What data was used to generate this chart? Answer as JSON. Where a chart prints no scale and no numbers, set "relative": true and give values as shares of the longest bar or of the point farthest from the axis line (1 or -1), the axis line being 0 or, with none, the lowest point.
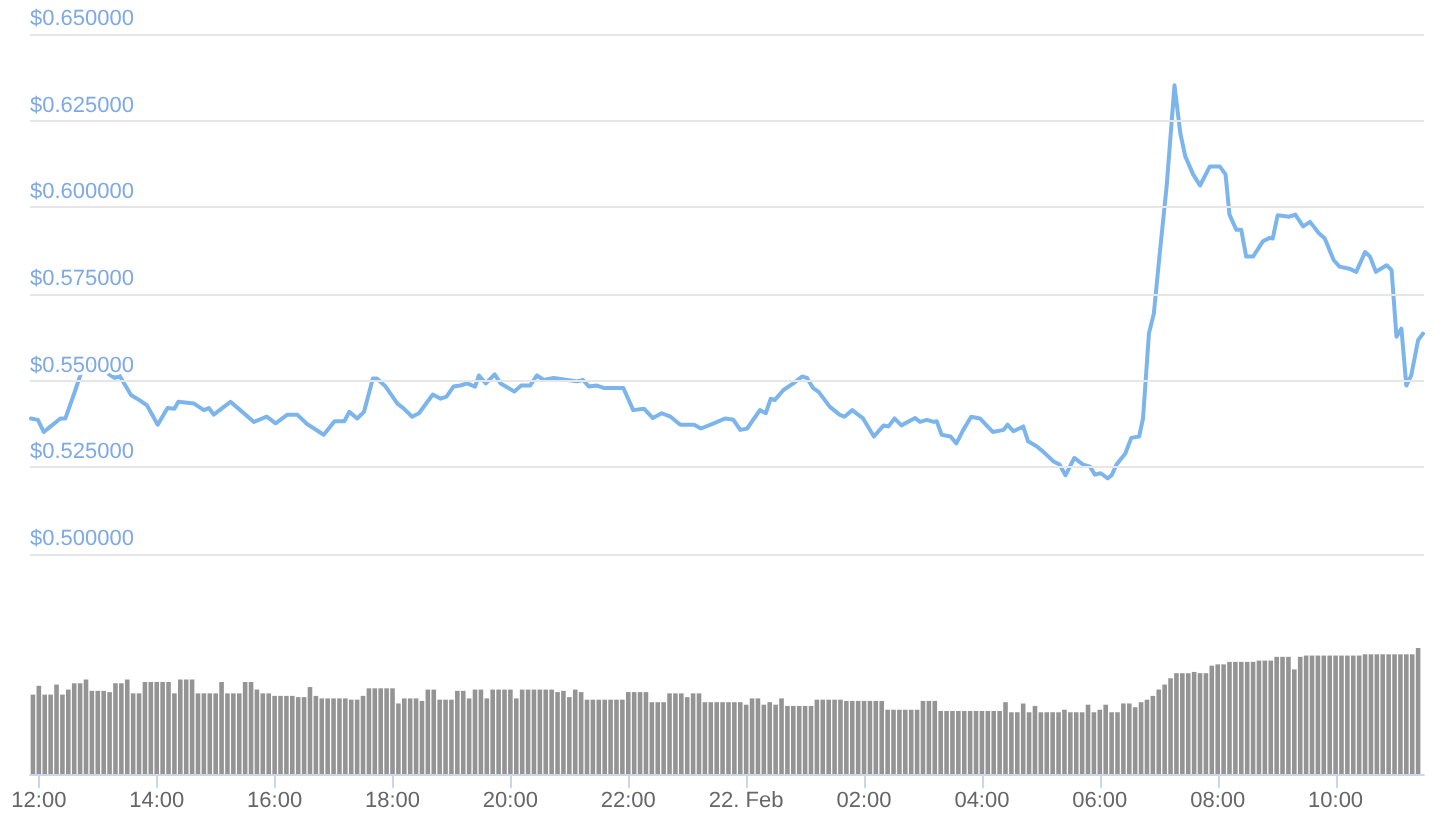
{
  "chart_data": [
    {
      "type": "line",
      "color": "#7cb5ec",
      "grid": "y",
      "tick_labels": "y",
      "xlim": [
        "--02-21T11:51",
        "--02-22T11:30"
      ],
      "ylim": [
        0.5,
        0.65
      ],
      "yticks": [
        {
          "value": 0.5,
          "label": "$0.500000"
        },
        {
          "value": 0.525,
          "label": "$0.525000"
        },
        {
          "value": 0.55,
          "label": "$0.550000"
        },
        {
          "value": 0.575,
          "label": "$0.575000"
        },
        {
          "value": 0.6,
          "label": "$0.600000"
        },
        {
          "value": 0.625,
          "label": "$0.625000"
        },
        {
          "value": 0.65,
          "label": "$0.650000"
        }
      ],
      "x": [
        "--02-21T11:52",
        "--02-21T11:59",
        "--02-21T12:05",
        "--02-21T12:12",
        "--02-21T12:22",
        "--02-21T12:27",
        "--02-21T12:36",
        "--02-21T12:44",
        "--02-21T12:53",
        "--02-21T12:59",
        "--02-21T13:10",
        "--02-21T13:17",
        "--02-21T13:22",
        "--02-21T13:34",
        "--02-21T13:40",
        "--02-21T13:50",
        "--02-21T14:01",
        "--02-21T14:11",
        "--02-21T14:18",
        "--02-21T14:22",
        "--02-21T14:38",
        "--02-21T14:48",
        "--02-21T14:53",
        "--02-21T14:58",
        "--02-21T15:15",
        "--02-21T15:25",
        "--02-21T15:39",
        "--02-21T15:52",
        "--02-21T16:01",
        "--02-21T16:13",
        "--02-21T16:23",
        "--02-21T16:33",
        "--02-21T16:50",
        "--02-21T17:01",
        "--02-21T17:11",
        "--02-21T17:16",
        "--02-21T17:24",
        "--02-21T17:31",
        "--02-21T17:40",
        "--02-21T17:44",
        "--02-21T17:53",
        "--02-21T18:05",
        "--02-21T18:11",
        "--02-21T18:20",
        "--02-21T18:27",
        "--02-21T18:41",
        "--02-21T18:49",
        "--02-21T18:55",
        "--02-21T19:02",
        "--02-21T19:09",
        "--02-21T19:16",
        "--02-21T19:24",
        "--02-21T19:28",
        "--02-21T19:35",
        "--02-21T19:44",
        "--02-21T19:50",
        "--02-21T20:04",
        "--02-21T20:11",
        "--02-21T20:20",
        "--02-21T20:27",
        "--02-21T20:34",
        "--02-21T20:44",
        "--02-21T20:58",
        "--02-21T21:08",
        "--02-21T21:14",
        "--02-21T21:20",
        "--02-21T21:28",
        "--02-21T21:35",
        "--02-21T21:55",
        "--02-21T22:05",
        "--02-21T22:16",
        "--02-21T22:25",
        "--02-21T22:34",
        "--02-21T22:43",
        "--02-21T22:53",
        "--02-21T23:07",
        "--02-21T23:14",
        "--02-21T23:27",
        "--02-21T23:39",
        "--02-21T23:47",
        "--02-21T23:54",
        "--02-22T00:01",
        "--02-22T00:14",
        "--02-22T00:20",
        "--02-22T00:25",
        "--02-22T00:29",
        "--02-22T00:38",
        "--02-22T00:48",
        "--02-22T00:57",
        "--02-22T01:02",
        "--02-22T01:08",
        "--02-22T01:14",
        "--02-22T01:25",
        "--02-22T01:35",
        "--02-22T01:40",
        "--02-22T01:48",
        "--02-22T01:59",
        "--02-22T02:10",
        "--02-22T02:20",
        "--02-22T02:25",
        "--02-22T02:31",
        "--02-22T02:38",
        "--02-22T02:52",
        "--02-22T02:57",
        "--02-22T03:04",
        "--02-22T03:11",
        "--02-22T03:14",
        "--02-22T03:19",
        "--02-22T03:28",
        "--02-22T03:34",
        "--02-22T03:41",
        "--02-22T03:49",
        "--02-22T03:58",
        "--02-22T04:11",
        "--02-22T04:22",
        "--02-22T04:26",
        "--02-22T04:32",
        "--02-22T04:42",
        "--02-22T04:47",
        "--02-22T04:56",
        "--02-22T05:02",
        "--02-22T05:13",
        "--02-22T05:19",
        "--02-22T05:25",
        "--02-22T05:34",
        "--02-22T05:43",
        "--02-22T05:50",
        "--02-22T05:55",
        "--02-22T06:01",
        "--02-22T06:08",
        "--02-22T06:12",
        "--02-22T06:17",
        "--02-22T06:26",
        "--02-22T06:32",
        "--02-22T06:40",
        "--02-22T06:44",
        "--02-22T06:50",
        "--02-22T06:55",
        "--02-22T07:01",
        "--02-22T07:08",
        "--02-22T07:16",
        "--02-22T07:22",
        "--02-22T07:27",
        "--02-22T07:35",
        "--02-22T07:42",
        "--02-22T07:52",
        "--02-22T08:02",
        "--02-22T08:08",
        "--02-22T08:12",
        "--02-22T08:19",
        "--02-22T08:24",
        "--02-22T08:29",
        "--02-22T08:36",
        "--02-22T08:46",
        "--02-22T08:53",
        "--02-22T08:56",
        "--02-22T09:01",
        "--02-22T09:13",
        "--02-22T09:19",
        "--02-22T09:27",
        "--02-22T09:34",
        "--02-22T09:43",
        "--02-22T09:49",
        "--02-22T09:58",
        "--02-22T10:04",
        "--02-22T10:14",
        "--02-22T10:21",
        "--02-22T10:30",
        "--02-22T10:35",
        "--02-22T10:41",
        "--02-22T10:52",
        "--02-22T10:57",
        "--02-22T11:02",
        "--02-22T11:07",
        "--02-22T11:12",
        "--02-22T11:17",
        "--02-22T11:24",
        "--02-22T11:29"
      ],
      "values": [
        0.5391,
        0.5387,
        0.5352,
        0.5368,
        0.5391,
        0.5391,
        0.5463,
        0.5531,
        0.5554,
        0.5535,
        0.5521,
        0.5508,
        0.5515,
        0.5458,
        0.5448,
        0.5429,
        0.5373,
        0.5421,
        0.5419,
        0.5439,
        0.5434,
        0.5415,
        0.5421,
        0.5402,
        0.5439,
        0.5415,
        0.5381,
        0.5396,
        0.5377,
        0.5402,
        0.5402,
        0.5375,
        0.5344,
        0.5383,
        0.5383,
        0.541,
        0.5391,
        0.541,
        0.5506,
        0.5506,
        0.5483,
        0.5434,
        0.5421,
        0.5396,
        0.5406,
        0.546,
        0.5448,
        0.5454,
        0.5483,
        0.5486,
        0.5492,
        0.5483,
        0.5515,
        0.5492,
        0.5518,
        0.5492,
        0.5469,
        0.5486,
        0.5486,
        0.5515,
        0.5502,
        0.5508,
        0.5502,
        0.5498,
        0.5502,
        0.5483,
        0.5486,
        0.5479,
        0.5479,
        0.5415,
        0.5419,
        0.5392,
        0.5406,
        0.5396,
        0.5373,
        0.5373,
        0.5362,
        0.5377,
        0.5391,
        0.5387,
        0.5358,
        0.5362,
        0.5415,
        0.5406,
        0.5448,
        0.5444,
        0.5473,
        0.5492,
        0.5512,
        0.5508,
        0.5479,
        0.5467,
        0.5425,
        0.5402,
        0.5396,
        0.5415,
        0.5391,
        0.5339,
        0.5371,
        0.5368,
        0.5391,
        0.5371,
        0.5392,
        0.5381,
        0.5387,
        0.5381,
        0.5383,
        0.5344,
        0.5339,
        0.5319,
        0.5358,
        0.5396,
        0.5391,
        0.5352,
        0.5358,
        0.5373,
        0.5354,
        0.5368,
        0.5325,
        0.531,
        0.5296,
        0.5267,
        0.5258,
        0.5227,
        0.5277,
        0.5258,
        0.5252,
        0.5229,
        0.5233,
        0.5218,
        0.5227,
        0.5258,
        0.529,
        0.5335,
        0.5339,
        0.5391,
        0.5636,
        0.5694,
        0.5867,
        0.606,
        0.6352,
        0.6213,
        0.6147,
        0.6095,
        0.6063,
        0.6118,
        0.6118,
        0.6095,
        0.5979,
        0.5935,
        0.5935,
        0.5858,
        0.5858,
        0.5902,
        0.5912,
        0.591,
        0.5977,
        0.5973,
        0.5979,
        0.5945,
        0.5958,
        0.5925,
        0.591,
        0.5848,
        0.5829,
        0.5823,
        0.5814,
        0.5871,
        0.5858,
        0.5814,
        0.5833,
        0.5819,
        0.5627,
        0.565,
        0.5486,
        0.5515,
        0.5617,
        0.5636
      ]
    },
    {
      "type": "bar",
      "color": "#949494",
      "relative": true,
      "xlim": [
        "--02-21T11:51",
        "--02-22T11:30"
      ],
      "xticks": [
        {
          "value": "--02-21T12:00",
          "label": "12:00"
        },
        {
          "value": "--02-21T14:00",
          "label": "14:00"
        },
        {
          "value": "--02-21T16:00",
          "label": "16:00"
        },
        {
          "value": "--02-21T18:00",
          "label": "18:00"
        },
        {
          "value": "--02-21T20:00",
          "label": "20:00"
        },
        {
          "value": "--02-21T22:00",
          "label": "22:00"
        },
        {
          "value": "--02-22T00:00",
          "label": "22. Feb"
        },
        {
          "value": "--02-22T02:00",
          "label": "02:00"
        },
        {
          "value": "--02-22T04:00",
          "label": "04:00"
        },
        {
          "value": "--02-22T06:00",
          "label": "06:00"
        },
        {
          "value": "--02-22T08:00",
          "label": "08:00"
        },
        {
          "value": "--02-22T10:00",
          "label": "10:00"
        }
      ],
      "x": [
        "--02-21T11:54",
        "--02-21T12:00",
        "--02-21T12:06",
        "--02-21T12:12",
        "--02-21T12:18",
        "--02-21T12:24",
        "--02-21T12:30",
        "--02-21T12:36",
        "--02-21T12:42",
        "--02-21T12:48",
        "--02-21T12:54",
        "--02-21T13:00",
        "--02-21T13:06",
        "--02-21T13:12",
        "--02-21T13:18",
        "--02-21T13:24",
        "--02-21T13:30",
        "--02-21T13:36",
        "--02-21T13:42",
        "--02-21T13:48",
        "--02-21T13:54",
        "--02-21T14:00",
        "--02-21T14:06",
        "--02-21T14:12",
        "--02-21T14:18",
        "--02-21T14:24",
        "--02-21T14:30",
        "--02-21T14:36",
        "--02-21T14:42",
        "--02-21T14:48",
        "--02-21T14:54",
        "--02-21T15:00",
        "--02-21T15:06",
        "--02-21T15:12",
        "--02-21T15:18",
        "--02-21T15:24",
        "--02-21T15:30",
        "--02-21T15:36",
        "--02-21T15:42",
        "--02-21T15:48",
        "--02-21T15:54",
        "--02-21T16:00",
        "--02-21T16:06",
        "--02-21T16:12",
        "--02-21T16:18",
        "--02-21T16:24",
        "--02-21T16:30",
        "--02-21T16:36",
        "--02-21T16:42",
        "--02-21T16:48",
        "--02-21T16:54",
        "--02-21T17:00",
        "--02-21T17:06",
        "--02-21T17:12",
        "--02-21T17:18",
        "--02-21T17:24",
        "--02-21T17:30",
        "--02-21T17:36",
        "--02-21T17:42",
        "--02-21T17:48",
        "--02-21T17:54",
        "--02-21T18:00",
        "--02-21T18:06",
        "--02-21T18:12",
        "--02-21T18:18",
        "--02-21T18:24",
        "--02-21T18:30",
        "--02-21T18:36",
        "--02-21T18:42",
        "--02-21T18:48",
        "--02-21T18:54",
        "--02-21T19:00",
        "--02-21T19:06",
        "--02-21T19:12",
        "--02-21T19:18",
        "--02-21T19:24",
        "--02-21T19:30",
        "--02-21T19:36",
        "--02-21T19:42",
        "--02-21T19:48",
        "--02-21T19:54",
        "--02-21T20:00",
        "--02-21T20:06",
        "--02-21T20:12",
        "--02-21T20:18",
        "--02-21T20:24",
        "--02-21T20:30",
        "--02-21T20:36",
        "--02-21T20:42",
        "--02-21T20:48",
        "--02-21T20:54",
        "--02-21T21:00",
        "--02-21T21:06",
        "--02-21T21:12",
        "--02-21T21:18",
        "--02-21T21:24",
        "--02-21T21:30",
        "--02-21T21:36",
        "--02-21T21:42",
        "--02-21T21:48",
        "--02-21T21:54",
        "--02-21T22:00",
        "--02-21T22:06",
        "--02-21T22:12",
        "--02-21T22:18",
        "--02-21T22:24",
        "--02-21T22:30",
        "--02-21T22:36",
        "--02-21T22:42",
        "--02-21T22:48",
        "--02-21T22:54",
        "--02-21T23:00",
        "--02-21T23:06",
        "--02-21T23:12",
        "--02-21T23:18",
        "--02-21T23:24",
        "--02-21T23:30",
        "--02-21T23:36",
        "--02-21T23:42",
        "--02-21T23:48",
        "--02-21T23:54",
        "--02-22T00:00",
        "--02-22T00:06",
        "--02-22T00:12",
        "--02-22T00:18",
        "--02-22T00:24",
        "--02-22T00:30",
        "--02-22T00:36",
        "--02-22T00:42",
        "--02-22T00:48",
        "--02-22T00:54",
        "--02-22T01:00",
        "--02-22T01:06",
        "--02-22T01:12",
        "--02-22T01:18",
        "--02-22T01:24",
        "--02-22T01:30",
        "--02-22T01:36",
        "--02-22T01:42",
        "--02-22T01:48",
        "--02-22T01:54",
        "--02-22T02:00",
        "--02-22T02:06",
        "--02-22T02:12",
        "--02-22T02:18",
        "--02-22T02:24",
        "--02-22T02:30",
        "--02-22T02:36",
        "--02-22T02:42",
        "--02-22T02:48",
        "--02-22T02:54",
        "--02-22T03:00",
        "--02-22T03:06",
        "--02-22T03:12",
        "--02-22T03:18",
        "--02-22T03:24",
        "--02-22T03:30",
        "--02-22T03:36",
        "--02-22T03:42",
        "--02-22T03:48",
        "--02-22T03:54",
        "--02-22T04:00",
        "--02-22T04:06",
        "--02-22T04:12",
        "--02-22T04:18",
        "--02-22T04:24",
        "--02-22T04:30",
        "--02-22T04:36",
        "--02-22T04:42",
        "--02-22T04:48",
        "--02-22T04:54",
        "--02-22T05:00",
        "--02-22T05:06",
        "--02-22T05:12",
        "--02-22T05:18",
        "--02-22T05:24",
        "--02-22T05:30",
        "--02-22T05:36",
        "--02-22T05:42",
        "--02-22T05:48",
        "--02-22T05:54",
        "--02-22T06:00",
        "--02-22T06:06",
        "--02-22T06:12",
        "--02-22T06:18",
        "--02-22T06:24",
        "--02-22T06:30",
        "--02-22T06:36",
        "--02-22T06:42",
        "--02-22T06:48",
        "--02-22T06:54",
        "--02-22T07:00",
        "--02-22T07:06",
        "--02-22T07:12",
        "--02-22T07:18",
        "--02-22T07:24",
        "--02-22T07:30",
        "--02-22T07:36",
        "--02-22T07:42",
        "--02-22T07:48",
        "--02-22T07:54",
        "--02-22T08:00",
        "--02-22T08:06",
        "--02-22T08:12",
        "--02-22T08:18",
        "--02-22T08:24",
        "--02-22T08:30",
        "--02-22T08:36",
        "--02-22T08:42",
        "--02-22T08:48",
        "--02-22T08:54",
        "--02-22T09:00",
        "--02-22T09:06",
        "--02-22T09:12",
        "--02-22T09:18",
        "--02-22T09:24",
        "--02-22T09:30",
        "--02-22T09:36",
        "--02-22T09:42",
        "--02-22T09:48",
        "--02-22T09:54",
        "--02-22T10:00",
        "--02-22T10:06",
        "--02-22T10:12",
        "--02-22T10:18",
        "--02-22T10:24",
        "--02-22T10:30",
        "--02-22T10:36",
        "--02-22T10:42",
        "--02-22T10:48",
        "--02-22T10:54",
        "--02-22T11:00",
        "--02-22T11:06",
        "--02-22T11:12",
        "--02-22T11:18",
        "--02-22T11:24"
      ],
      "values": [
        0.63,
        0.7,
        0.63,
        0.63,
        0.71,
        0.63,
        0.67,
        0.72,
        0.72,
        0.75,
        0.66,
        0.66,
        0.66,
        0.65,
        0.72,
        0.72,
        0.75,
        0.64,
        0.64,
        0.73,
        0.73,
        0.73,
        0.73,
        0.73,
        0.64,
        0.75,
        0.75,
        0.75,
        0.64,
        0.64,
        0.64,
        0.64,
        0.73,
        0.64,
        0.64,
        0.64,
        0.73,
        0.73,
        0.67,
        0.64,
        0.64,
        0.62,
        0.62,
        0.62,
        0.62,
        0.61,
        0.61,
        0.69,
        0.62,
        0.6,
        0.6,
        0.6,
        0.6,
        0.6,
        0.59,
        0.59,
        0.62,
        0.68,
        0.68,
        0.68,
        0.68,
        0.68,
        0.56,
        0.6,
        0.6,
        0.6,
        0.58,
        0.67,
        0.67,
        0.59,
        0.59,
        0.59,
        0.66,
        0.66,
        0.6,
        0.67,
        0.67,
        0.6,
        0.67,
        0.67,
        0.67,
        0.67,
        0.6,
        0.67,
        0.67,
        0.67,
        0.67,
        0.67,
        0.67,
        0.65,
        0.66,
        0.61,
        0.67,
        0.65,
        0.59,
        0.59,
        0.59,
        0.59,
        0.59,
        0.59,
        0.59,
        0.65,
        0.65,
        0.65,
        0.65,
        0.57,
        0.57,
        0.57,
        0.64,
        0.64,
        0.64,
        0.61,
        0.64,
        0.64,
        0.57,
        0.57,
        0.57,
        0.57,
        0.57,
        0.57,
        0.57,
        0.55,
        0.6,
        0.6,
        0.55,
        0.57,
        0.55,
        0.6,
        0.54,
        0.54,
        0.54,
        0.54,
        0.54,
        0.59,
        0.59,
        0.59,
        0.59,
        0.59,
        0.58,
        0.58,
        0.58,
        0.58,
        0.58,
        0.58,
        0.58,
        0.51,
        0.51,
        0.51,
        0.51,
        0.51,
        0.51,
        0.58,
        0.58,
        0.58,
        0.5,
        0.5,
        0.5,
        0.5,
        0.5,
        0.5,
        0.5,
        0.5,
        0.5,
        0.5,
        0.5,
        0.57,
        0.49,
        0.49,
        0.56,
        0.49,
        0.54,
        0.49,
        0.49,
        0.49,
        0.49,
        0.51,
        0.49,
        0.49,
        0.49,
        0.55,
        0.49,
        0.51,
        0.55,
        0.49,
        0.49,
        0.56,
        0.56,
        0.53,
        0.57,
        0.59,
        0.62,
        0.67,
        0.71,
        0.76,
        0.8,
        0.8,
        0.8,
        0.81,
        0.8,
        0.8,
        0.86,
        0.87,
        0.87,
        0.89,
        0.89,
        0.89,
        0.89,
        0.89,
        0.9,
        0.9,
        0.9,
        0.93,
        0.93,
        0.93,
        0.83,
        0.93,
        0.94,
        0.94,
        0.94,
        0.94,
        0.94,
        0.94,
        0.94,
        0.94,
        0.94,
        0.94,
        0.95,
        0.95,
        0.95,
        0.95,
        0.95,
        0.95,
        0.95,
        0.95,
        0.95,
        1
      ]
    }
  ]
}
